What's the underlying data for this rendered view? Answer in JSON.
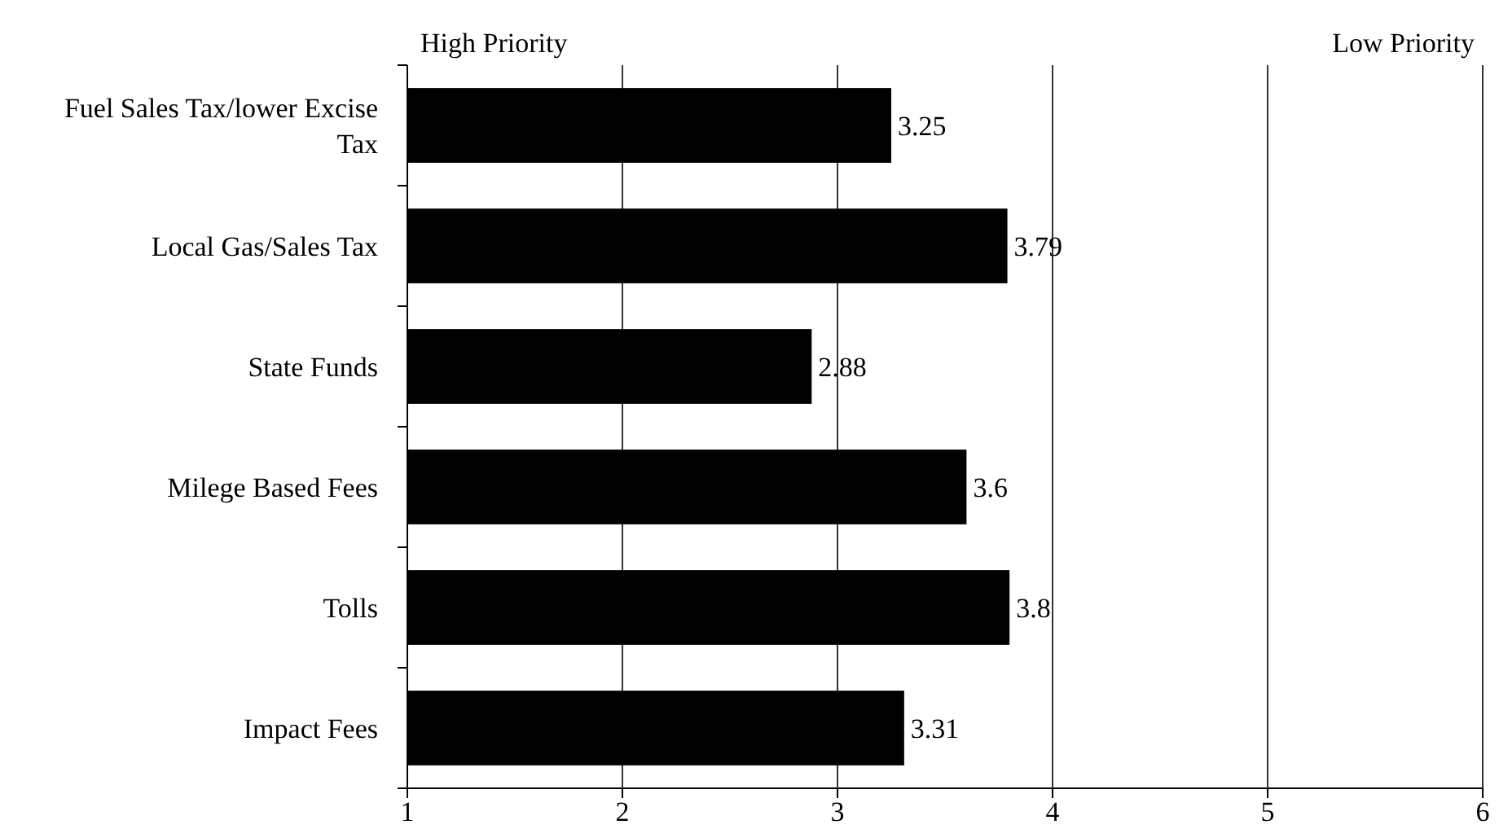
{
  "chart_data": {
    "type": "bar",
    "orientation": "horizontal",
    "categories": [
      "Fuel Sales Tax/lower Excise Tax",
      "Local Gas/Sales Tax",
      "State Funds",
      "Milege Based Fees",
      "Tolls",
      "Impact Fees"
    ],
    "values": [
      3.25,
      3.79,
      2.88,
      3.6,
      3.8,
      3.31
    ],
    "color": "#000000",
    "xlim": [
      1,
      6
    ],
    "xticks": [
      1,
      2,
      3,
      4,
      5,
      6
    ],
    "grid": "x",
    "data_labels": true,
    "annotations": [
      "High Priority",
      "Low Priority"
    ]
  }
}
